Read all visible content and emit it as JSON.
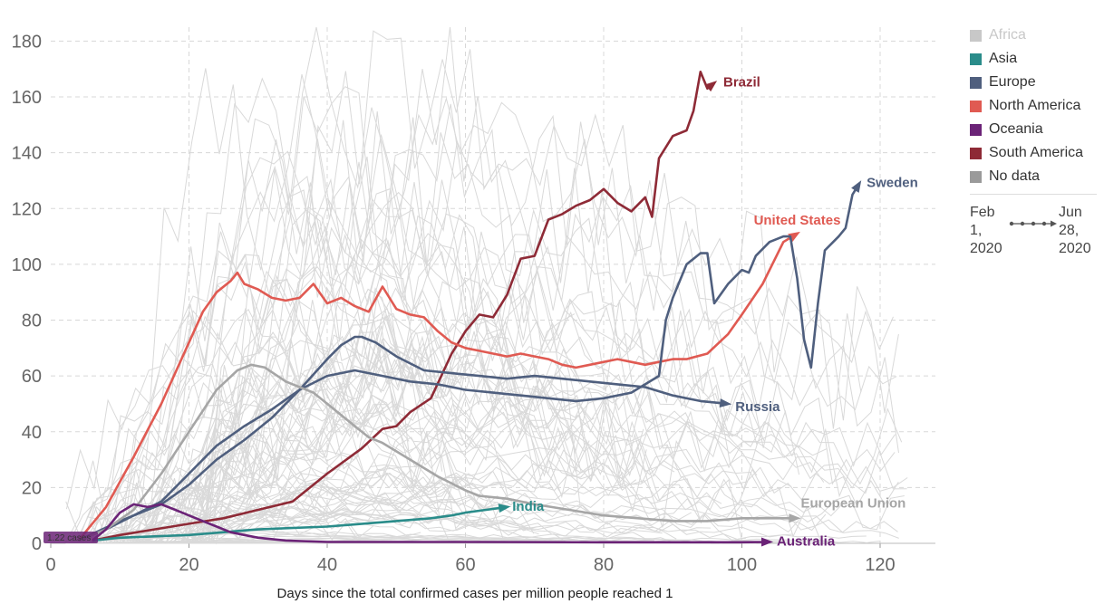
{
  "chart_data": {
    "type": "line",
    "title": "",
    "xlabel": "Days since the total confirmed cases per million people reached 1",
    "ylabel": "",
    "xlim": [
      0,
      128
    ],
    "ylim": [
      0,
      185
    ],
    "xticks": [
      0,
      20,
      40,
      60,
      80,
      100,
      120
    ],
    "yticks": [
      0,
      20,
      40,
      60,
      80,
      100,
      120,
      140,
      160,
      180
    ],
    "grid": true,
    "legend_position": "right",
    "start_marker_label": "1.22 cases",
    "legend": [
      {
        "label": "Africa",
        "color": "#c8c8c8",
        "faded": true
      },
      {
        "label": "Asia",
        "color": "#2a8c8a"
      },
      {
        "label": "Europe",
        "color": "#4f5f7e"
      },
      {
        "label": "North America",
        "color": "#e05a52"
      },
      {
        "label": "Oceania",
        "color": "#6b2377"
      },
      {
        "label": "South America",
        "color": "#8e2a36"
      },
      {
        "label": "No data",
        "color": "#9a9a9a"
      }
    ],
    "timeline": {
      "start": "Feb 1, 2020",
      "end": "Jun 28, 2020"
    },
    "series": [
      {
        "name": "Brazil",
        "color": "#8e2a36",
        "points": [
          [
            6,
            1
          ],
          [
            10,
            3
          ],
          [
            15,
            5
          ],
          [
            20,
            7
          ],
          [
            25,
            9
          ],
          [
            30,
            12
          ],
          [
            35,
            15
          ],
          [
            40,
            25
          ],
          [
            45,
            34
          ],
          [
            48,
            41
          ],
          [
            50,
            42
          ],
          [
            52,
            47
          ],
          [
            55,
            52
          ],
          [
            58,
            68
          ],
          [
            60,
            76
          ],
          [
            62,
            82
          ],
          [
            64,
            81
          ],
          [
            66,
            89
          ],
          [
            68,
            102
          ],
          [
            70,
            103
          ],
          [
            72,
            116
          ],
          [
            74,
            118
          ],
          [
            76,
            121
          ],
          [
            78,
            123
          ],
          [
            80,
            127
          ],
          [
            82,
            122
          ],
          [
            84,
            119
          ],
          [
            86,
            124
          ],
          [
            87,
            117
          ],
          [
            88,
            138
          ],
          [
            90,
            146
          ],
          [
            92,
            148
          ],
          [
            93,
            155
          ],
          [
            94,
            169
          ],
          [
            95,
            163
          ],
          [
            96,
            165
          ]
        ]
      },
      {
        "name": "United States",
        "color": "#e05a52",
        "points": [
          [
            4,
            1
          ],
          [
            8,
            13
          ],
          [
            12,
            31
          ],
          [
            16,
            50
          ],
          [
            20,
            72
          ],
          [
            22,
            83
          ],
          [
            24,
            90
          ],
          [
            26,
            94
          ],
          [
            27,
            97
          ],
          [
            28,
            93
          ],
          [
            30,
            91
          ],
          [
            32,
            88
          ],
          [
            34,
            87
          ],
          [
            36,
            88
          ],
          [
            38,
            93
          ],
          [
            40,
            86
          ],
          [
            42,
            88
          ],
          [
            44,
            85
          ],
          [
            46,
            83
          ],
          [
            48,
            92
          ],
          [
            50,
            84
          ],
          [
            52,
            82
          ],
          [
            54,
            81
          ],
          [
            56,
            76
          ],
          [
            58,
            72
          ],
          [
            60,
            70
          ],
          [
            62,
            69
          ],
          [
            64,
            68
          ],
          [
            66,
            67
          ],
          [
            68,
            68
          ],
          [
            70,
            67
          ],
          [
            72,
            66
          ],
          [
            74,
            64
          ],
          [
            76,
            63
          ],
          [
            78,
            64
          ],
          [
            80,
            65
          ],
          [
            82,
            66
          ],
          [
            84,
            65
          ],
          [
            86,
            64
          ],
          [
            88,
            65
          ],
          [
            90,
            66
          ],
          [
            92,
            66
          ],
          [
            95,
            68
          ],
          [
            98,
            75
          ],
          [
            100,
            82
          ],
          [
            103,
            93
          ],
          [
            106,
            108
          ],
          [
            108,
            111
          ]
        ]
      },
      {
        "name": "Sweden",
        "color": "#4f5f7e",
        "points": [
          [
            4,
            1
          ],
          [
            8,
            5
          ],
          [
            12,
            10
          ],
          [
            16,
            15
          ],
          [
            20,
            25
          ],
          [
            24,
            35
          ],
          [
            28,
            42
          ],
          [
            32,
            48
          ],
          [
            36,
            55
          ],
          [
            40,
            60
          ],
          [
            44,
            62
          ],
          [
            48,
            60
          ],
          [
            52,
            58
          ],
          [
            56,
            57
          ],
          [
            60,
            55
          ],
          [
            64,
            54
          ],
          [
            68,
            53
          ],
          [
            72,
            52
          ],
          [
            76,
            51
          ],
          [
            80,
            52
          ],
          [
            84,
            54
          ],
          [
            88,
            60
          ],
          [
            89,
            80
          ],
          [
            90,
            88
          ],
          [
            92,
            100
          ],
          [
            94,
            104
          ],
          [
            95,
            104
          ],
          [
            96,
            86
          ],
          [
            98,
            93
          ],
          [
            100,
            98
          ],
          [
            101,
            97
          ],
          [
            102,
            103
          ],
          [
            104,
            108
          ],
          [
            106,
            110
          ],
          [
            107,
            110
          ],
          [
            108,
            95
          ],
          [
            109,
            73
          ],
          [
            110,
            63
          ],
          [
            111,
            86
          ],
          [
            112,
            105
          ],
          [
            114,
            110
          ],
          [
            115,
            113
          ],
          [
            116,
            125
          ],
          [
            117,
            129
          ]
        ]
      },
      {
        "name": "Russia",
        "color": "#4f5f7e",
        "points": [
          [
            4,
            1
          ],
          [
            10,
            8
          ],
          [
            16,
            14
          ],
          [
            20,
            21
          ],
          [
            24,
            30
          ],
          [
            28,
            37
          ],
          [
            32,
            45
          ],
          [
            36,
            55
          ],
          [
            40,
            66
          ],
          [
            42,
            71
          ],
          [
            44,
            74
          ],
          [
            45,
            74
          ],
          [
            47,
            72
          ],
          [
            50,
            67
          ],
          [
            54,
            62
          ],
          [
            58,
            61
          ],
          [
            62,
            60
          ],
          [
            66,
            59
          ],
          [
            70,
            60
          ],
          [
            74,
            59
          ],
          [
            78,
            58
          ],
          [
            82,
            57
          ],
          [
            86,
            56
          ],
          [
            90,
            53
          ],
          [
            94,
            51
          ],
          [
            98,
            50
          ]
        ]
      },
      {
        "name": "India",
        "color": "#2a8c8a",
        "points": [
          [
            6,
            1
          ],
          [
            10,
            2
          ],
          [
            20,
            3
          ],
          [
            30,
            5
          ],
          [
            40,
            6
          ],
          [
            50,
            8
          ],
          [
            55,
            9
          ],
          [
            58,
            10
          ],
          [
            60,
            11
          ],
          [
            63,
            12
          ],
          [
            66,
            13
          ]
        ]
      },
      {
        "name": "European Union",
        "color": "#a6a6a6",
        "points": [
          [
            4,
            1
          ],
          [
            8,
            5
          ],
          [
            12,
            12
          ],
          [
            16,
            25
          ],
          [
            20,
            40
          ],
          [
            24,
            55
          ],
          [
            27,
            62
          ],
          [
            29,
            64
          ],
          [
            31,
            63
          ],
          [
            34,
            58
          ],
          [
            36,
            56
          ],
          [
            38,
            54
          ],
          [
            40,
            50
          ],
          [
            42,
            46
          ],
          [
            44,
            42
          ],
          [
            46,
            38
          ],
          [
            48,
            36
          ],
          [
            52,
            30
          ],
          [
            56,
            24
          ],
          [
            60,
            19
          ],
          [
            62,
            17
          ],
          [
            66,
            16
          ],
          [
            70,
            14
          ],
          [
            75,
            12
          ],
          [
            80,
            10
          ],
          [
            85,
            9
          ],
          [
            90,
            8
          ],
          [
            95,
            8
          ],
          [
            100,
            9
          ],
          [
            105,
            9
          ],
          [
            108,
            9
          ]
        ]
      },
      {
        "name": "Australia",
        "color": "#6b2377",
        "points": [
          [
            6,
            1
          ],
          [
            8,
            5
          ],
          [
            10,
            11
          ],
          [
            12,
            14
          ],
          [
            14,
            13
          ],
          [
            16,
            14
          ],
          [
            18,
            12
          ],
          [
            20,
            10
          ],
          [
            22,
            8
          ],
          [
            24,
            6
          ],
          [
            26,
            4
          ],
          [
            28,
            3
          ],
          [
            30,
            2
          ],
          [
            34,
            1
          ],
          [
            40,
            0.5
          ],
          [
            60,
            0.5
          ],
          [
            80,
            0.4
          ],
          [
            100,
            0.4
          ],
          [
            104,
            0.5
          ]
        ]
      }
    ]
  }
}
